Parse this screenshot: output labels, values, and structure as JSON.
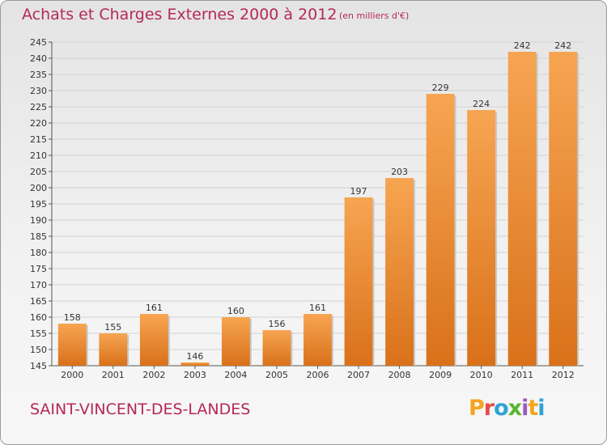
{
  "chart_data": {
    "type": "bar",
    "title": "Achats et Charges Externes 2000 à 2012",
    "subtitle": "(en milliers d'€)",
    "categories": [
      "2000",
      "2001",
      "2002",
      "2003",
      "2004",
      "2005",
      "2006",
      "2007",
      "2008",
      "2009",
      "2010",
      "2011",
      "2012"
    ],
    "values": [
      158,
      155,
      161,
      146,
      160,
      156,
      161,
      197,
      203,
      229,
      224,
      242,
      242
    ],
    "ylim": [
      145,
      245
    ],
    "yticks": [
      145,
      150,
      155,
      160,
      165,
      170,
      175,
      180,
      185,
      190,
      195,
      200,
      205,
      210,
      215,
      220,
      225,
      230,
      235,
      240,
      245
    ],
    "grid": true,
    "bar_color": "#f0922f"
  },
  "commune": "SAINT-VINCENT-DES-LANDES",
  "logo": {
    "letters": [
      "P",
      "r",
      "o",
      "x",
      "i",
      "t",
      "i"
    ]
  }
}
